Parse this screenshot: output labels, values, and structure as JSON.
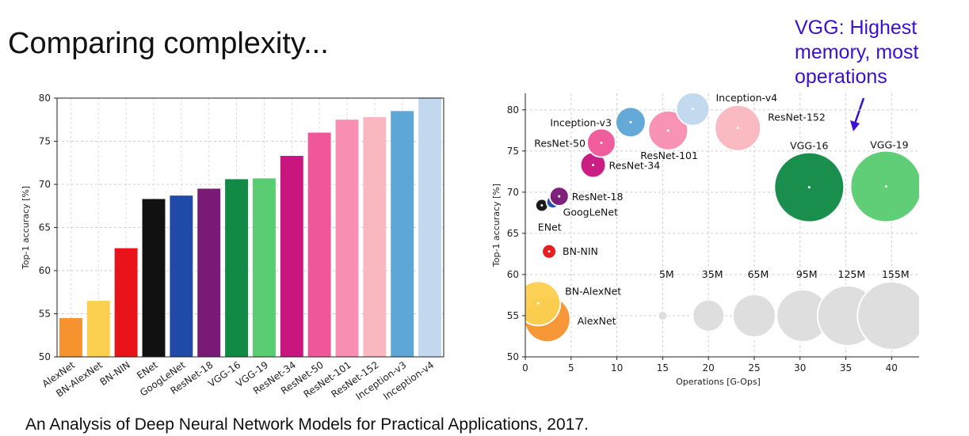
{
  "slide": {
    "title": "Comparing complexity...",
    "callout": [
      "VGG: Highest",
      "memory, most",
      "operations"
    ],
    "citation": "An Analysis of Deep Neural Network Models for Practical Applications, 2017."
  },
  "chart_data": [
    {
      "type": "bar",
      "title": "",
      "xlabel": "",
      "ylabel": "Top-1 accuracy [%]",
      "ylim": [
        50,
        80
      ],
      "yticks": [
        50,
        55,
        60,
        65,
        70,
        75,
        80
      ],
      "grid": true,
      "categories": [
        "AlexNet",
        "BN-AlexNet",
        "BN-NIN",
        "ENet",
        "GoogLeNet",
        "ResNet-18",
        "VGG-16",
        "VGG-19",
        "ResNet-34",
        "ResNet-50",
        "ResNet-101",
        "ResNet-152",
        "Inception-v3",
        "Inception-v4"
      ],
      "values": [
        54.5,
        56.5,
        62.6,
        68.3,
        68.7,
        69.5,
        70.6,
        70.7,
        73.3,
        76.0,
        77.5,
        77.8,
        78.5,
        80.1
      ],
      "colors": [
        "#f7932f",
        "#fcd04f",
        "#e8141a",
        "#111111",
        "#1f4aa8",
        "#7b1a76",
        "#118a45",
        "#5acd72",
        "#c8157f",
        "#f0579a",
        "#f88fb3",
        "#f9b8c0",
        "#5ea6d6",
        "#c1d8ee"
      ]
    },
    {
      "type": "scatter",
      "title": "",
      "xlabel": "Operations [G-Ops]",
      "ylabel": "Top-1 accuracy [%]",
      "xlim": [
        0,
        43
      ],
      "ylim": [
        50,
        82
      ],
      "xticks": [
        0,
        5,
        10,
        15,
        20,
        25,
        30,
        35,
        40
      ],
      "yticks": [
        50,
        55,
        60,
        65,
        70,
        75,
        80
      ],
      "grid": true,
      "points": [
        {
          "label": "AlexNet",
          "x": 2.4,
          "y": 54.6,
          "r": 29,
          "color": "#f7932f"
        },
        {
          "label": "BN-AlexNet",
          "x": 1.4,
          "y": 56.5,
          "r": 28,
          "color": "#fcd04f"
        },
        {
          "label": "BN-NIN",
          "x": 2.6,
          "y": 62.8,
          "r": 9,
          "color": "#e8141a"
        },
        {
          "label": "ENet",
          "x": 1.8,
          "y": 68.4,
          "r": 8,
          "color": "#111111"
        },
        {
          "label": "GoogLeNet",
          "x": 3.0,
          "y": 68.8,
          "r": 8,
          "color": "#1f4aa8"
        },
        {
          "label": "ResNet-18",
          "x": 3.7,
          "y": 69.5,
          "r": 12,
          "color": "#7b1a76"
        },
        {
          "label": "ResNet-34",
          "x": 7.4,
          "y": 73.3,
          "r": 16,
          "color": "#c8157f"
        },
        {
          "label": "ResNet-50",
          "x": 8.3,
          "y": 76.0,
          "r": 18,
          "color": "#f0579a"
        },
        {
          "label": "Inception-v3",
          "x": 11.5,
          "y": 78.5,
          "r": 19,
          "color": "#5ea6d6"
        },
        {
          "label": "ResNet-101",
          "x": 15.6,
          "y": 77.5,
          "r": 25,
          "color": "#f88fb3"
        },
        {
          "label": "Inception-v4",
          "x": 18.3,
          "y": 80.1,
          "r": 21,
          "color": "#c1d8ee"
        },
        {
          "label": "ResNet-152",
          "x": 23.2,
          "y": 77.8,
          "r": 29,
          "color": "#f9b8c0"
        },
        {
          "label": "VGG-16",
          "x": 31.0,
          "y": 70.6,
          "r": 44,
          "color": "#118a45"
        },
        {
          "label": "VGG-19",
          "x": 39.4,
          "y": 70.7,
          "r": 45,
          "color": "#5acd72"
        }
      ],
      "size_legend": [
        {
          "label": "5M",
          "x": 15.0,
          "y": 55,
          "r": 6
        },
        {
          "label": "35M",
          "x": 20.0,
          "y": 55,
          "r": 20
        },
        {
          "label": "65M",
          "x": 25.0,
          "y": 55,
          "r": 27
        },
        {
          "label": "95M",
          "x": 30.3,
          "y": 55,
          "r": 33
        },
        {
          "label": "125M",
          "x": 35.2,
          "y": 55,
          "r": 38
        },
        {
          "label": "155M",
          "x": 40.0,
          "y": 55,
          "r": 43
        }
      ],
      "legend_color": "#dedede"
    }
  ]
}
